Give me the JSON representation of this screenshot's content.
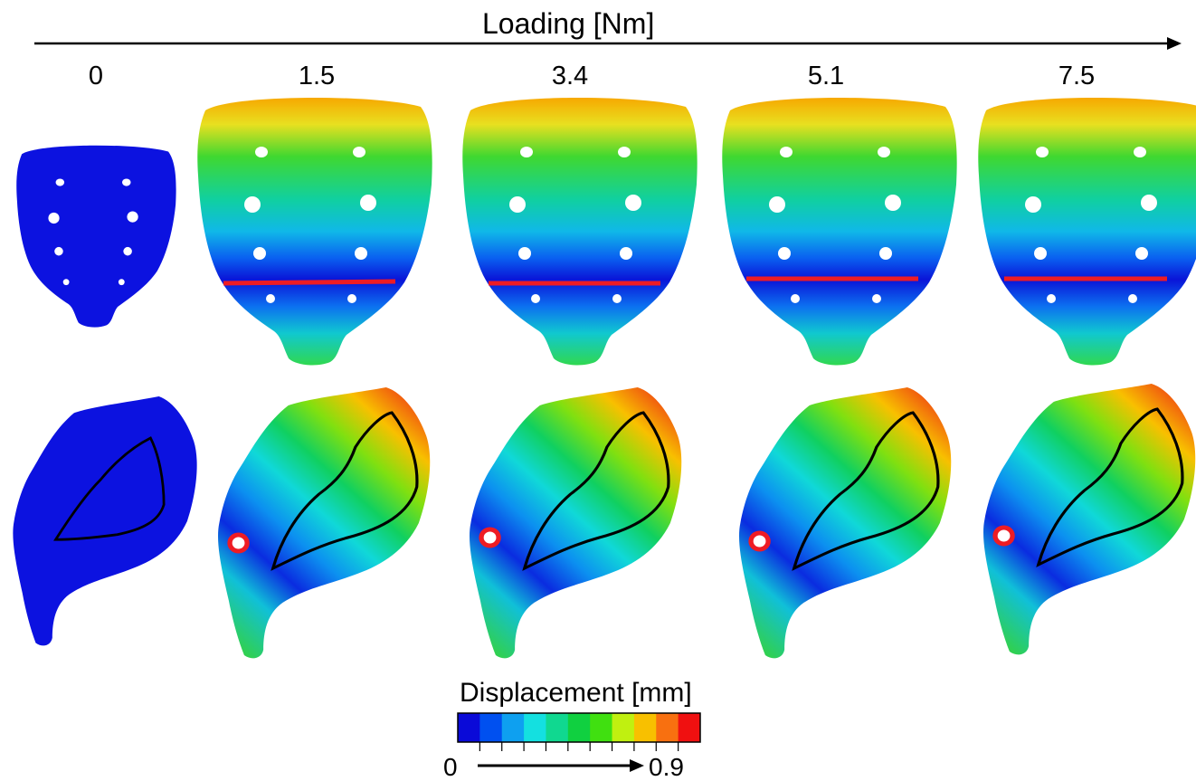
{
  "figure": {
    "axis_title": "Loading [Nm]",
    "loading_steps": [
      "0",
      "1.5",
      "3.4",
      "5.1",
      "7.5"
    ]
  },
  "legend": {
    "title": "Displacement [mm]",
    "min_label": "0",
    "max_label": "0.9",
    "colors": [
      "#0a0ad8",
      "#0050f0",
      "#0ea0f0",
      "#14e0e0",
      "#10d890",
      "#10d040",
      "#40e010",
      "#c0f010",
      "#f8c000",
      "#f87010",
      "#f01010"
    ]
  },
  "colors": {
    "baseline_blue": "#0c12e0",
    "marker_line_red": "#ee1c24",
    "outline_black": "#000000"
  }
}
